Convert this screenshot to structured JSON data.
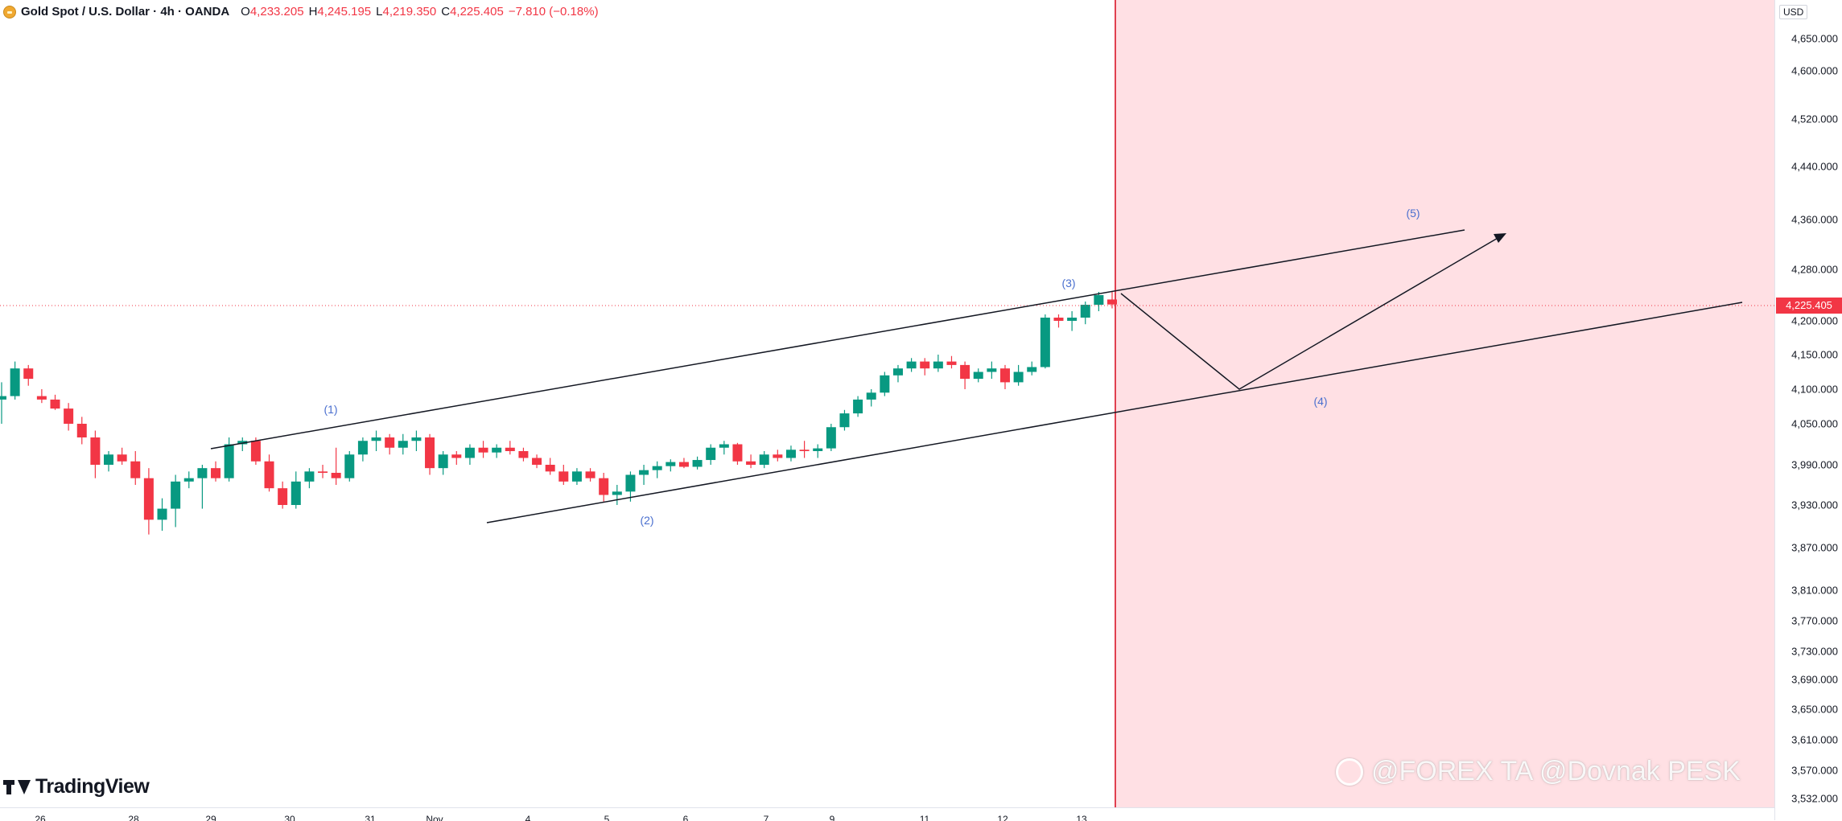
{
  "legend": {
    "title": "Gold Spot / U.S. Dollar · 4h · OANDA",
    "open_key": "O",
    "open": "4,233.205",
    "high_key": "H",
    "high": "4,245.195",
    "low_key": "L",
    "low": "4,219.350",
    "close_key": "C",
    "close": "4,225.405",
    "change": "−7.810 (−0.18%)"
  },
  "price_axis": {
    "unit": "USD",
    "last_price": "4,225.405",
    "ticks": [
      "4,650.000",
      "4,600.000",
      "4,520.000",
      "4,440.000",
      "4,360.000",
      "4,280.000",
      "4,200.000",
      "4,150.000",
      "4,100.000",
      "4,050.000",
      "3,990.000",
      "3,930.000",
      "3,870.000",
      "3,810.000",
      "3,770.000",
      "3,730.000",
      "3,690.000",
      "3,650.000",
      "3,610.000",
      "3,570.000",
      "3,532.000"
    ]
  },
  "time_axis": {
    "ticks": [
      "26",
      "28",
      "29",
      "30",
      "31",
      "Nov",
      "4",
      "5",
      "6",
      "7",
      "9",
      "11",
      "12",
      "13"
    ]
  },
  "waves": {
    "w1": "(1)",
    "w2": "(2)",
    "w3": "(3)",
    "w4": "(4)",
    "w5": "(5)"
  },
  "branding": {
    "logo_text": "TradingView",
    "logo_icon": "tradingview-logo-icon",
    "watermark_text": "@FOREX TA @Dovnak PESK"
  },
  "colors": {
    "up": "#089981",
    "down": "#f23645",
    "forecast_zone": "#ffe0e4",
    "wave_label": "#4a6fcf"
  },
  "chart_data": {
    "type": "candlestick",
    "symbol": "Gold Spot / U.S. Dollar",
    "interval": "4h",
    "ylim": [
      3532,
      4660
    ],
    "ohlc": [
      [
        4085,
        4110,
        4050,
        4090
      ],
      [
        4090,
        4140,
        4085,
        4130
      ],
      [
        4130,
        4135,
        4105,
        4115
      ],
      [
        4090,
        4100,
        4080,
        4085
      ],
      [
        4085,
        4092,
        4070,
        4072
      ],
      [
        4072,
        4080,
        4040,
        4050
      ],
      [
        4050,
        4060,
        4020,
        4030
      ],
      [
        4030,
        4040,
        3970,
        3990
      ],
      [
        3990,
        4010,
        3980,
        4005
      ],
      [
        4005,
        4015,
        3990,
        3995
      ],
      [
        3995,
        4010,
        3960,
        3970
      ],
      [
        3970,
        3985,
        3890,
        3910
      ],
      [
        3910,
        3940,
        3895,
        3925
      ],
      [
        3925,
        3975,
        3900,
        3965
      ],
      [
        3965,
        3980,
        3955,
        3970
      ],
      [
        3970,
        3990,
        3925,
        3985
      ],
      [
        3985,
        3995,
        3965,
        3970
      ],
      [
        3970,
        4030,
        3965,
        4020
      ],
      [
        4020,
        4030,
        4010,
        4025
      ],
      [
        4025,
        4030,
        3990,
        3995
      ],
      [
        3995,
        4005,
        3950,
        3955
      ],
      [
        3955,
        3965,
        3925,
        3930
      ],
      [
        3930,
        3980,
        3925,
        3965
      ],
      [
        3965,
        3985,
        3955,
        3980
      ],
      [
        3980,
        3990,
        3970,
        3978
      ],
      [
        3978,
        4015,
        3960,
        3970
      ],
      [
        3970,
        4010,
        3965,
        4005
      ],
      [
        4005,
        4030,
        3995,
        4025
      ],
      [
        4025,
        4040,
        4010,
        4030
      ],
      [
        4030,
        4035,
        4005,
        4015
      ],
      [
        4015,
        4035,
        4005,
        4025
      ],
      [
        4025,
        4040,
        4010,
        4030
      ],
      [
        4030,
        4035,
        3975,
        3985
      ],
      [
        3985,
        4010,
        3975,
        4005
      ],
      [
        4005,
        4010,
        3990,
        4000
      ],
      [
        4000,
        4020,
        3990,
        4015
      ],
      [
        4015,
        4025,
        4000,
        4008
      ],
      [
        4008,
        4020,
        4000,
        4015
      ],
      [
        4015,
        4025,
        4005,
        4010
      ],
      [
        4010,
        4015,
        3995,
        4000
      ],
      [
        4000,
        4005,
        3985,
        3990
      ],
      [
        3990,
        4000,
        3975,
        3980
      ],
      [
        3980,
        3990,
        3960,
        3965
      ],
      [
        3965,
        3985,
        3960,
        3980
      ],
      [
        3980,
        3985,
        3965,
        3970
      ],
      [
        3970,
        3978,
        3935,
        3945
      ],
      [
        3945,
        3960,
        3930,
        3950
      ],
      [
        3950,
        3980,
        3935,
        3975
      ],
      [
        3975,
        3990,
        3960,
        3982
      ],
      [
        3982,
        3995,
        3970,
        3988
      ],
      [
        3988,
        3998,
        3980,
        3994
      ],
      [
        3994,
        4000,
        3985,
        3987
      ],
      [
        3987,
        4002,
        3983,
        3997
      ],
      [
        3997,
        4020,
        3990,
        4015
      ],
      [
        4015,
        4025,
        4005,
        4020
      ],
      [
        4020,
        4022,
        3990,
        3995
      ],
      [
        3995,
        4005,
        3985,
        3990
      ],
      [
        3990,
        4010,
        3985,
        4005
      ],
      [
        4005,
        4012,
        3995,
        4000
      ],
      [
        4000,
        4018,
        3995,
        4012
      ],
      [
        4012,
        4025,
        4000,
        4010
      ],
      [
        4010,
        4020,
        4000,
        4014
      ],
      [
        4014,
        4050,
        4010,
        4045
      ],
      [
        4045,
        4070,
        4040,
        4065
      ],
      [
        4065,
        4090,
        4060,
        4085
      ],
      [
        4085,
        4100,
        4075,
        4095
      ],
      [
        4095,
        4125,
        4090,
        4120
      ],
      [
        4120,
        4135,
        4110,
        4130
      ],
      [
        4130,
        4145,
        4125,
        4140
      ],
      [
        4140,
        4145,
        4120,
        4130
      ],
      [
        4130,
        4150,
        4125,
        4140
      ],
      [
        4140,
        4148,
        4130,
        4135
      ],
      [
        4135,
        4140,
        4100,
        4115
      ],
      [
        4115,
        4130,
        4110,
        4125
      ],
      [
        4125,
        4140,
        4115,
        4130
      ],
      [
        4130,
        4135,
        4100,
        4110
      ],
      [
        4110,
        4135,
        4105,
        4125
      ],
      [
        4125,
        4140,
        4120,
        4132
      ],
      [
        4132,
        4210,
        4130,
        4205
      ],
      [
        4205,
        4210,
        4190,
        4200
      ],
      [
        4200,
        4215,
        4185,
        4205
      ],
      [
        4205,
        4230,
        4195,
        4225
      ],
      [
        4225,
        4245,
        4215,
        4240
      ],
      [
        4233.205,
        4245.195,
        4219.35,
        4225.405
      ]
    ]
  }
}
